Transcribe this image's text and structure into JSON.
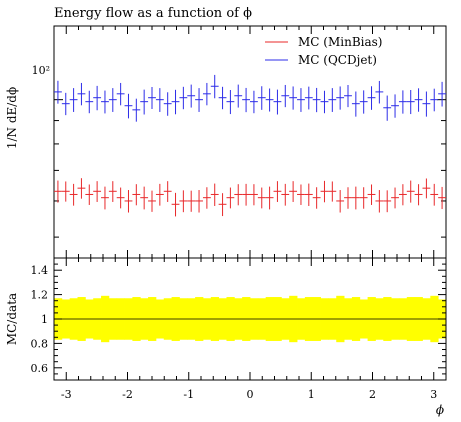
{
  "chart_data": [
    {
      "type": "scatter",
      "title": "Energy flow as a function of ϕ",
      "ylabel": "1/N dE/dϕ",
      "yscale": "log",
      "ylim": [
        45,
        145
      ],
      "xlim": [
        -3.2,
        3.2
      ],
      "y_tick_labels": [
        "10²"
      ],
      "legend_position": "top-right",
      "legend": [
        {
          "label": "MC (MinBias)",
          "color": "#e8282a"
        },
        {
          "label": "MC (QCDjet)",
          "color": "#2c2ce8"
        }
      ],
      "x_bin_count": 50,
      "series": [
        {
          "name": "MC (MinBias)",
          "color": "#e8282a",
          "values": [
            63,
            63,
            62,
            64,
            62,
            63,
            61,
            63,
            61,
            60,
            62,
            61,
            60,
            62,
            63,
            59,
            60,
            60,
            60,
            61,
            62,
            59,
            61,
            62,
            62,
            62,
            61,
            61,
            63,
            62,
            63,
            62,
            62,
            61,
            63,
            63,
            60,
            61,
            61,
            61,
            62,
            60,
            60,
            61,
            62,
            63,
            62,
            64,
            62,
            61
          ],
          "errors": [
            3.5,
            3.2,
            3.4,
            3.3,
            3.2,
            3.3,
            3.5,
            3.3,
            3.2,
            3.4,
            3.3,
            3.5,
            3.2,
            3.4,
            3.3,
            3.5,
            3.3,
            3.2,
            3.4,
            3.3,
            3.5,
            3.4,
            3.2,
            3.3,
            3.4,
            3.3,
            3.2,
            3.5,
            3.3,
            3.4,
            3.3,
            3.2,
            3.5,
            3.3,
            3.4,
            3.2,
            3.4,
            3.3,
            3.5,
            3.3,
            3.2,
            3.4,
            3.3,
            3.2,
            3.3,
            3.5,
            3.3,
            3.2,
            3.4,
            3.4
          ]
        },
        {
          "name": "MC (QCDjet)",
          "color": "#2c2ce8",
          "values": [
            104,
            98,
            100,
            103,
            99,
            101,
            99,
            100,
            103,
            97,
            95,
            99,
            101,
            100,
            98,
            99,
            101,
            102,
            100,
            103,
            107,
            101,
            99,
            102,
            100,
            99,
            101,
            100,
            99,
            102,
            101,
            100,
            101,
            100,
            99,
            100,
            101,
            102,
            98,
            99,
            101,
            104,
            96,
            97,
            99,
            99,
            100,
            98,
            100,
            103
          ],
          "errors": [
            6,
            5.5,
            6,
            5.8,
            5.6,
            6.2,
            5.7,
            6,
            5.8,
            6,
            5.5,
            6.2,
            5.6,
            6,
            5.8,
            6.1,
            5.7,
            5.9,
            6,
            5.8,
            6.3,
            5.7,
            6,
            5.9,
            6.1,
            5.6,
            6,
            5.8,
            6.2,
            5.7,
            5.9,
            6,
            5.8,
            6.1,
            5.6,
            6,
            5.9,
            5.7,
            6.2,
            5.8,
            6,
            5.9,
            6.1,
            5.7,
            5.8,
            6,
            5.9,
            6.2,
            5.7,
            6.4
          ]
        }
      ]
    },
    {
      "type": "area",
      "ylabel": "MC/data",
      "xlabel": "ϕ",
      "xlim": [
        -3.2,
        3.2
      ],
      "ylim": [
        0.5,
        1.5
      ],
      "x_tick_labels": [
        "-3",
        "-2",
        "-1",
        "0",
        "1",
        "2",
        "3"
      ],
      "y_tick_labels": [
        "0.6",
        "0.8",
        "1",
        "1.2",
        "1.4"
      ],
      "band_color": "#ffff00",
      "reference_line": 1.0,
      "band_halfwidth": [
        0.17,
        0.16,
        0.17,
        0.18,
        0.16,
        0.17,
        0.19,
        0.17,
        0.17,
        0.17,
        0.18,
        0.17,
        0.18,
        0.16,
        0.17,
        0.18,
        0.17,
        0.17,
        0.18,
        0.17,
        0.18,
        0.17,
        0.18,
        0.17,
        0.18,
        0.17,
        0.17,
        0.18,
        0.18,
        0.17,
        0.19,
        0.17,
        0.18,
        0.18,
        0.17,
        0.17,
        0.19,
        0.17,
        0.18,
        0.16,
        0.18,
        0.17,
        0.18,
        0.17,
        0.17,
        0.18,
        0.18,
        0.17,
        0.19,
        0.16
      ]
    }
  ]
}
